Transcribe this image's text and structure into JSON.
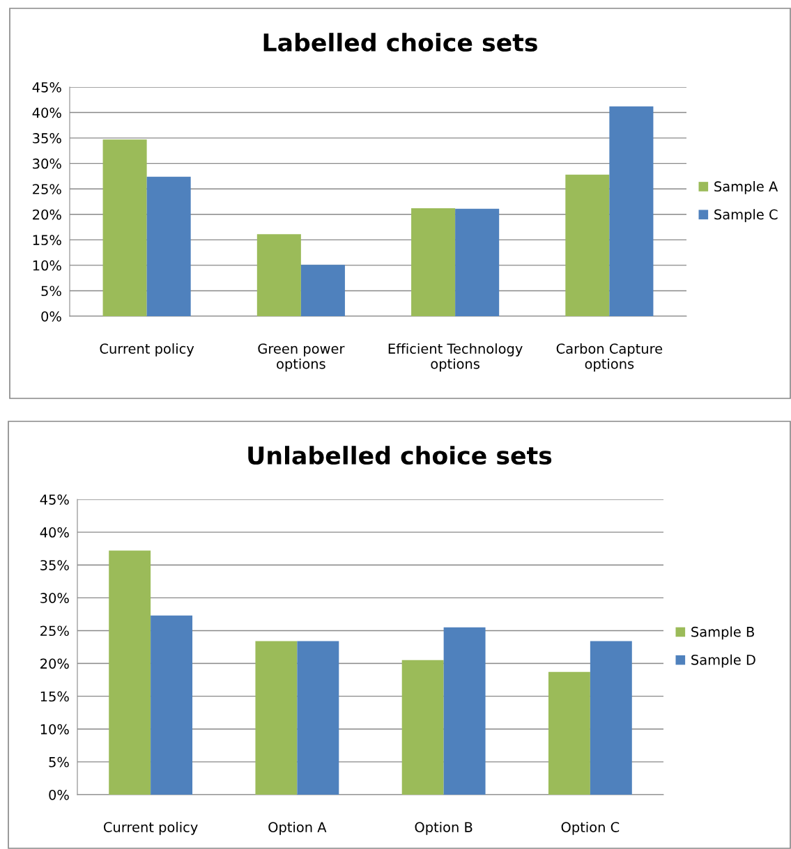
{
  "chart_data": [
    {
      "type": "bar",
      "title": "Labelled choice sets",
      "categories": [
        "Current policy",
        "Green power\noptions",
        "Efficient Technology\noptions",
        "Carbon Capture\noptions"
      ],
      "series": [
        {
          "name": "Sample A",
          "color": "#9bbb59",
          "values": [
            34.7,
            16.1,
            21.2,
            27.8
          ]
        },
        {
          "name": "Sample C",
          "color": "#4f81bd",
          "values": [
            27.4,
            10.1,
            21.1,
            41.2
          ]
        }
      ],
      "ylim": [
        0,
        45
      ],
      "yticks": [
        {
          "value": 0,
          "label": "0%"
        },
        {
          "value": 5,
          "label": "5%"
        },
        {
          "value": 10,
          "label": "10%"
        },
        {
          "value": 15,
          "label": "15%"
        },
        {
          "value": 20,
          "label": "20%"
        },
        {
          "value": 25,
          "label": "25%"
        },
        {
          "value": 30,
          "label": "30%"
        },
        {
          "value": 35,
          "label": "35%"
        },
        {
          "value": 40,
          "label": "40%"
        },
        {
          "value": 45,
          "label": "45%"
        }
      ],
      "grid": "y",
      "legend": "right"
    },
    {
      "type": "bar",
      "title": "Unlabelled choice sets",
      "categories": [
        "Current policy",
        "Option A",
        "Option B",
        "Option C"
      ],
      "series": [
        {
          "name": "Sample B",
          "color": "#9bbb59",
          "values": [
            37.2,
            23.4,
            20.5,
            18.7
          ]
        },
        {
          "name": "Sample D",
          "color": "#4f81bd",
          "values": [
            27.3,
            23.4,
            25.5,
            23.4
          ]
        }
      ],
      "ylim": [
        0,
        45
      ],
      "yticks": [
        {
          "value": 0,
          "label": "0%"
        },
        {
          "value": 5,
          "label": "5%"
        },
        {
          "value": 10,
          "label": "10%"
        },
        {
          "value": 15,
          "label": "15%"
        },
        {
          "value": 20,
          "label": "20%"
        },
        {
          "value": 25,
          "label": "25%"
        },
        {
          "value": 30,
          "label": "30%"
        },
        {
          "value": 35,
          "label": "35%"
        },
        {
          "value": 40,
          "label": "40%"
        },
        {
          "value": 45,
          "label": "45%"
        }
      ],
      "grid": "y",
      "legend": "right"
    }
  ]
}
